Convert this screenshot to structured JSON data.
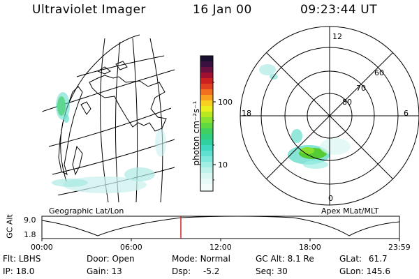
{
  "header": {
    "title": "Ultraviolet Imager",
    "date": "16 Jan 00",
    "time": "09:23:44 UT"
  },
  "geo_panel": {
    "label": "Geographic Lat/Lon"
  },
  "colorbar": {
    "unit_label": "photon cm⁻²s⁻¹",
    "tick_100": "100",
    "tick_10": "10"
  },
  "polar_panel": {
    "label": "Apex MLat/MLT",
    "mlt_12": "12",
    "mlt_18": "18",
    "mlt_6": "6",
    "mlt_0": "0",
    "lat_60": "60",
    "lat_70": "70",
    "lat_80": "80"
  },
  "altitude_plot": {
    "axis_title": "GC Alt",
    "y_top": "9.0",
    "y_bottom": "1.8",
    "x_ticks": [
      "00:00",
      "06:00",
      "12:00",
      "18:00",
      "23:59"
    ],
    "current_time_marker": "09:23"
  },
  "info": {
    "flt_label": "Flt:",
    "flt_value": "LBHS",
    "ip_label": "IP:",
    "ip_value": "18.0",
    "door_label": "Door:",
    "door_value": "Open",
    "gain_label": "Gain:",
    "gain_value": "13",
    "mode_label": "Mode:",
    "mode_value": "Normal",
    "dsp_label": "Dsp:",
    "dsp_value": "-5.2",
    "gcalt_label": "GC Alt:",
    "gcalt_value": "8.1 Re",
    "seq_label": "Seq:",
    "seq_value": "30",
    "glat_label": "GLat:",
    "glat_value": "61.7",
    "glon_label": "GLon:",
    "glon_value": "145.6"
  },
  "colors": {
    "marker": "#cc2222",
    "aurora_core": "#55cc33",
    "aurora_edge": "#66ddcc"
  }
}
